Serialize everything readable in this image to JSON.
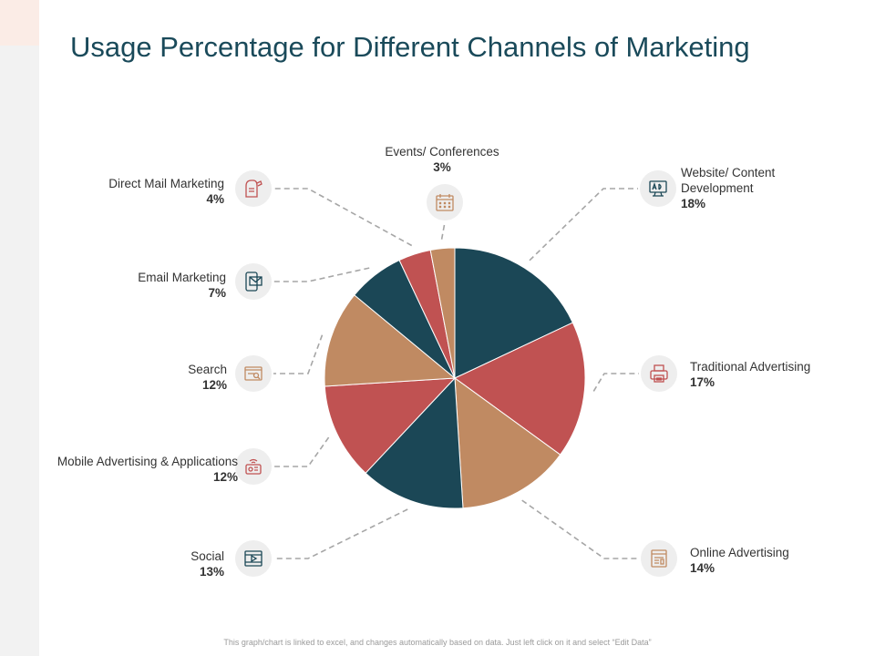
{
  "title": "Usage Percentage for Different Channels of Marketing",
  "footnote": "This graph/chart is linked to excel, and changes automatically based on data. Just left click on it and select “Edit Data”",
  "colors": {
    "navy": "#1b4756",
    "red": "#c05252",
    "tan": "#c08a62",
    "icon_bg": "#eeeeee"
  },
  "chart_data": {
    "type": "pie",
    "title": "Usage Percentage for Different Channels of Marketing",
    "slices": [
      {
        "name": "Website/ Content Development",
        "value": 18,
        "label": "18%",
        "color": "#1b4756",
        "icon": "monitor-ad-icon"
      },
      {
        "name": "Traditional Advertising",
        "value": 17,
        "label": "17%",
        "color": "#c05252",
        "icon": "printer-icon"
      },
      {
        "name": "Online Advertising",
        "value": 14,
        "label": "14%",
        "color": "#c08a62",
        "icon": "web-page-icon"
      },
      {
        "name": "Social",
        "value": 13,
        "label": "13%",
        "color": "#1b4756",
        "icon": "video-play-icon"
      },
      {
        "name": "Mobile Advertising & Applications",
        "value": 12,
        "label": "12%",
        "color": "#c05252",
        "icon": "mobile-wifi-icon"
      },
      {
        "name": "Search",
        "value": 12,
        "label": "12%",
        "color": "#c08a62",
        "icon": "search-box-icon"
      },
      {
        "name": "Email Marketing",
        "value": 7,
        "label": "7%",
        "color": "#1b4756",
        "icon": "email-icon"
      },
      {
        "name": "Direct Mail Marketing",
        "value": 4,
        "label": "4%",
        "color": "#c05252",
        "icon": "mailbox-icon"
      },
      {
        "name": "Events/ Conferences",
        "value": 3,
        "label": "3%",
        "color": "#c08a62",
        "icon": "calendar-icon"
      }
    ]
  }
}
